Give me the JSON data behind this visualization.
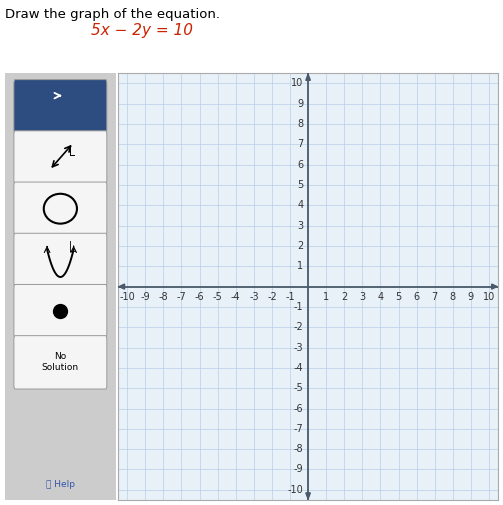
{
  "title_text": "Draw the graph of the equation.",
  "title_color": "#000000",
  "title_fontsize": 9.5,
  "equation_text": "5x − 2y = 10",
  "equation_color": "#cc2200",
  "equation_fontsize": 11,
  "xlim": [
    -10.5,
    10.5
  ],
  "ylim": [
    -10.5,
    10.5
  ],
  "grid_color": "#b8d0e8",
  "grid_linewidth": 0.5,
  "axis_color": "#4a5a6a",
  "tick_label_color": "#333333",
  "tick_fontsize": 7,
  "plot_bg": "#e8f0f8",
  "panel_bg": "#cccccc",
  "figure_bg": "#ffffff",
  "outer_border_color": "#aaaaaa",
  "button_selected_bg": "#2d4d80",
  "button_normal_bg": "#f5f5f5",
  "button_border_color": "#999999",
  "arrow_color": "#4a5a6a"
}
